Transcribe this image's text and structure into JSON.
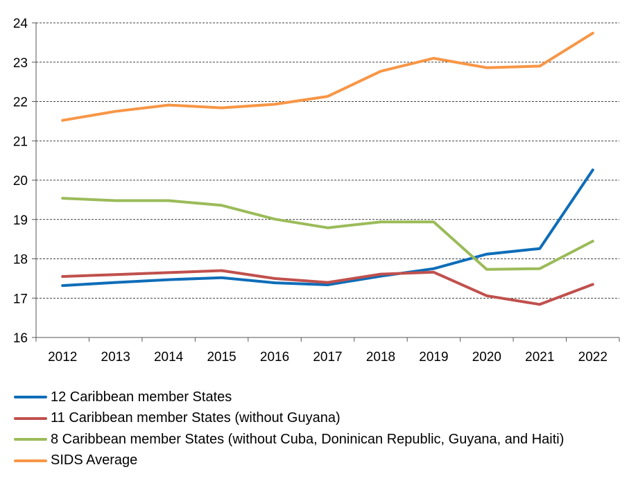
{
  "chart_data": {
    "type": "line",
    "x": [
      "2012",
      "2013",
      "2014",
      "2015",
      "2016",
      "2017",
      "2018",
      "2019",
      "2020",
      "2021",
      "2022"
    ],
    "ylim": [
      16,
      24
    ],
    "yticks": [
      16,
      17,
      18,
      19,
      20,
      21,
      22,
      23,
      24
    ],
    "grid": "horizontal dashed",
    "legend_position": "bottom",
    "series": [
      {
        "name": "12 Caribbean member States",
        "color": "#0e6db8",
        "values": [
          17.32,
          17.4,
          17.47,
          17.52,
          17.39,
          17.34,
          17.56,
          17.75,
          18.12,
          18.26,
          20.26
        ]
      },
      {
        "name": "11 Caribbean member States (without Guyana)",
        "color": "#c0504d",
        "values": [
          17.55,
          17.6,
          17.65,
          17.7,
          17.5,
          17.4,
          17.61,
          17.66,
          17.06,
          16.84,
          17.35
        ]
      },
      {
        "name": "8 Caribbean member States (without Cuba, Doninican Republic, Guyana, and Haiti)",
        "color": "#9bbb59",
        "values": [
          19.54,
          19.48,
          19.48,
          19.36,
          19.01,
          18.79,
          18.94,
          18.94,
          17.73,
          17.75,
          18.45
        ]
      },
      {
        "name": "SIDS Average",
        "color": "#f79646",
        "values": [
          21.52,
          21.75,
          21.91,
          21.84,
          21.93,
          22.13,
          22.77,
          23.1,
          22.86,
          22.9,
          23.74
        ]
      }
    ]
  }
}
